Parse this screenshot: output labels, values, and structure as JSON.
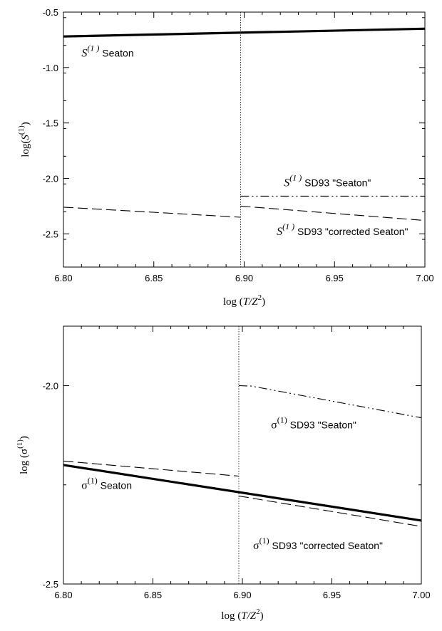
{
  "chart_data": [
    {
      "type": "line",
      "xlabel": {
        "pre": "log (",
        "main": "T/Z",
        "sup": "2",
        "post": ")"
      },
      "ylabel": {
        "pre": "log(",
        "main": "S",
        "sup": "(1)",
        "post": ")"
      },
      "xlim": [
        6.8,
        7.0
      ],
      "ylim": [
        -2.8,
        -0.5
      ],
      "xticks": [
        6.8,
        6.85,
        6.9,
        6.95,
        7.0
      ],
      "xtick_labels": [
        "6.80",
        "6.85",
        "6.90",
        "6.95",
        "7.00"
      ],
      "yticks": [
        -0.5,
        -1.0,
        -1.5,
        -2.0,
        -2.5
      ],
      "ytick_labels": [
        "-0.5",
        "-1.0",
        "-1.5",
        "-2.0",
        "-2.5"
      ],
      "vline": 6.898,
      "series": [
        {
          "style": "solid-thick",
          "x": [
            6.8,
            7.0
          ],
          "y": [
            -0.72,
            -0.65
          ]
        },
        {
          "style": "dash-dot-dot",
          "x": [
            6.898,
            7.0
          ],
          "y": [
            -2.16,
            -2.16
          ]
        },
        {
          "style": "dashed",
          "x": [
            6.8,
            6.898
          ],
          "y": [
            -2.26,
            -2.35
          ]
        },
        {
          "style": "dashed",
          "x": [
            6.898,
            7.0
          ],
          "y": [
            -2.25,
            -2.38
          ]
        }
      ],
      "annotations": [
        {
          "sym": "S",
          "sup": "(1 )",
          "text": "Seaton",
          "x": 6.81,
          "y": -0.9
        },
        {
          "sym": "S",
          "sup": "(1 )",
          "text": "SD93 \"Seaton\"",
          "x": 6.922,
          "y": -2.07
        },
        {
          "sym": "S",
          "sup": "(1 )",
          "text": "SD93 \"corrected Seaton\"",
          "x": 6.918,
          "y": -2.51
        }
      ]
    },
    {
      "type": "line",
      "xlabel": {
        "pre": "log (",
        "main": "T/Z",
        "sup": "2",
        "post": ")"
      },
      "ylabel": {
        "pre": "log (",
        "main": "σ",
        "sup": "(1)",
        "post": ")"
      },
      "xlim": [
        6.8,
        7.0
      ],
      "ylim": [
        -2.5,
        -1.85
      ],
      "xticks": [
        6.8,
        6.85,
        6.9,
        6.95,
        7.0
      ],
      "xtick_labels": [
        "6.80",
        "6.85",
        "6.90",
        "6.95",
        "7.00"
      ],
      "yticks": [
        -2.0,
        -2.5
      ],
      "ytick_labels": [
        "-2.0",
        "-2.5"
      ],
      "vline": 6.898,
      "series": [
        {
          "style": "solid-thick",
          "x": [
            6.8,
            7.0
          ],
          "y": [
            -2.2,
            -2.34
          ]
        },
        {
          "style": "dash-dot-dot",
          "x": [
            6.898,
            6.905,
            7.0
          ],
          "y": [
            -2.0,
            -2.001,
            -2.081
          ]
        },
        {
          "style": "dashed",
          "x": [
            6.8,
            6.898
          ],
          "y": [
            -2.19,
            -2.228
          ]
        },
        {
          "style": "dashed",
          "x": [
            6.898,
            7.0
          ],
          "y": [
            -2.278,
            -2.355
          ]
        }
      ],
      "annotations": [
        {
          "sym": "σ",
          "sup": "(1)",
          "text": "SD93 \"Seaton\"",
          "x": 6.916,
          "y": -2.108
        },
        {
          "sym": "σ",
          "sup": "(1)",
          "text": "Seaton",
          "x": 6.81,
          "y": -2.26
        },
        {
          "sym": "σ",
          "sup": "(1)",
          "text": "SD93 \"corrected Seaton\"",
          "x": 6.906,
          "y": -2.412
        }
      ]
    }
  ]
}
